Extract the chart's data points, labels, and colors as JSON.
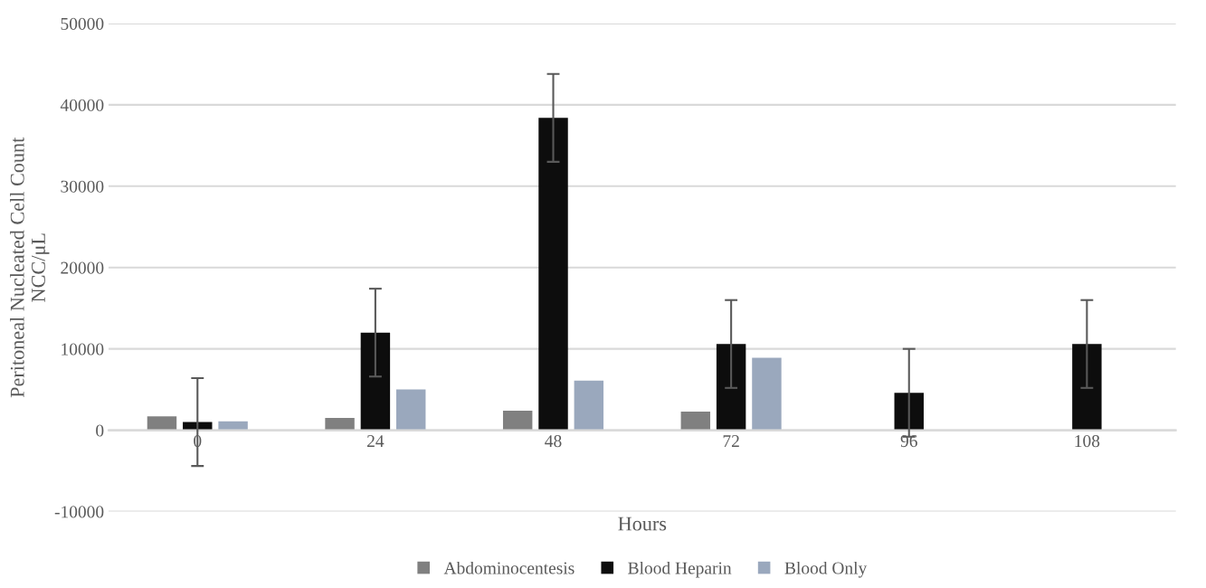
{
  "chart_data": {
    "type": "bar",
    "xlabel": "Hours",
    "ylabel": "Peritoneal Nucleated Cell Count\nNCC/μL",
    "categories": [
      "0",
      "24",
      "48",
      "72",
      "96",
      "108"
    ],
    "series": [
      {
        "name": "Abdominocentesis",
        "color": "#808080",
        "values": [
          1700,
          1500,
          2400,
          2300,
          null,
          null
        ]
      },
      {
        "name": "Blood Heparin",
        "color": "#0d0d0d",
        "values": [
          1000,
          12000,
          38400,
          10600,
          4600,
          10600
        ],
        "errors": [
          5400,
          5400,
          5400,
          5400,
          5400,
          5400
        ]
      },
      {
        "name": "Blood Only",
        "color": "#9aa8bd",
        "values": [
          1100,
          5000,
          6100,
          8900,
          null,
          null
        ]
      }
    ],
    "ylim": [
      -10000,
      50000
    ],
    "yticks": [
      -10000,
      0,
      10000,
      20000,
      30000,
      40000,
      50000
    ],
    "grid": "y",
    "legend": "bottom"
  }
}
